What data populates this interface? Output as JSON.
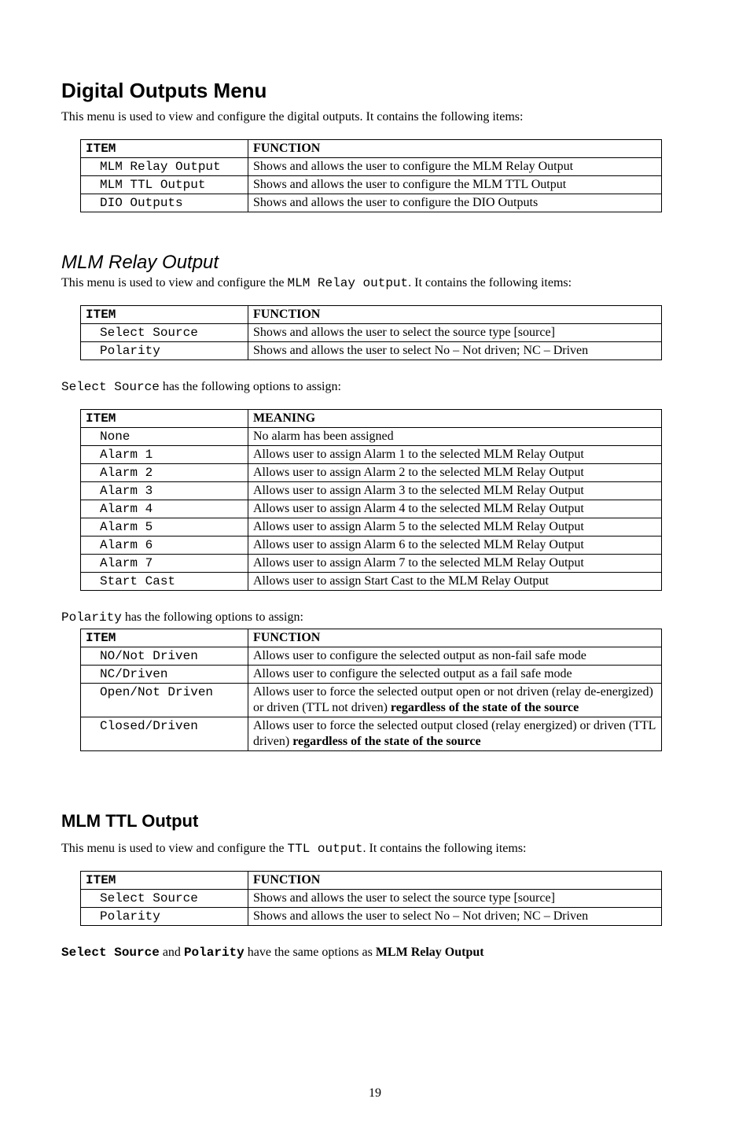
{
  "h1": "Digital Outputs Menu",
  "intro1": "This menu is used to view and configure the digital outputs.  It contains the following items:",
  "table1": {
    "headers": [
      "ITEM",
      "FUNCTION"
    ],
    "rows": [
      [
        "MLM Relay Output",
        "Shows and allows the user to configure the MLM Relay Output"
      ],
      [
        "MLM TTL Output",
        "Shows and allows the user to configure the MLM TTL Output"
      ],
      [
        "DIO Outputs",
        "Shows and allows the user to configure the DIO Outputs"
      ]
    ]
  },
  "h2a": "MLM Relay Output",
  "intro2_pre": "This menu is used to view and configure the ",
  "intro2_code": "MLM Relay output",
  "intro2_post": ".  It contains the following items:",
  "table2": {
    "headers": [
      "ITEM",
      "FUNCTION"
    ],
    "rows": [
      [
        "Select Source",
        "Shows and allows the user to select the source type [source]"
      ],
      [
        "Polarity",
        "Shows and allows the user to select No – Not driven; NC – Driven"
      ]
    ]
  },
  "para3_code": "Select Source",
  "para3_text": " has the following options to assign:",
  "table3": {
    "headers": [
      "ITEM",
      "MEANING"
    ],
    "rows": [
      [
        "None",
        "No alarm has been assigned"
      ],
      [
        "Alarm 1",
        "Allows user to assign Alarm 1 to the selected MLM Relay Output"
      ],
      [
        "Alarm 2",
        "Allows user to assign Alarm 2 to the selected MLM Relay Output"
      ],
      [
        "Alarm 3",
        "Allows user to assign Alarm 3 to the selected MLM Relay Output"
      ],
      [
        "Alarm 4",
        "Allows user to assign Alarm 4 to the selected MLM Relay Output"
      ],
      [
        "Alarm 5",
        "Allows user to assign Alarm 5 to the selected MLM Relay Output"
      ],
      [
        "Alarm 6",
        "Allows user to assign Alarm 6 to the selected MLM Relay Output"
      ],
      [
        "Alarm 7",
        "Allows user to assign Alarm 7 to the selected MLM Relay Output"
      ],
      [
        "Start Cast",
        "Allows user to assign Start Cast to the MLM Relay Output"
      ]
    ]
  },
  "para4_code": "Polarity",
  "para4_text": " has the following options to assign:",
  "table4": {
    "headers": [
      "ITEM",
      "FUNCTION"
    ],
    "rows": [
      {
        "item": "NO/Not Driven",
        "func": "Allows user to configure the selected output as non-fail safe mode"
      },
      {
        "item": "NC/Driven",
        "func": "Allows user to configure the selected output as a fail safe mode"
      },
      {
        "item": "Open/Not Driven",
        "func_pre": "Allows user to force the selected output open or not driven (relay de-energized) or driven (TTL not driven) ",
        "func_bold": "regardless of the state of the source"
      },
      {
        "item": "Closed/Driven",
        "func_pre": "Allows user to force the selected output closed (relay energized) or driven (TTL driven) ",
        "func_bold": "regardless of the state of the source"
      }
    ]
  },
  "h2b": "MLM TTL Output",
  "intro5_pre": "This menu is used to view and configure the ",
  "intro5_code": "TTL output",
  "intro5_post": ".  It contains the following items:",
  "table5": {
    "headers": [
      "ITEM",
      "FUNCTION"
    ],
    "rows": [
      [
        "Select Source",
        "Shows and allows the user to select the source type [source]"
      ],
      [
        "Polarity",
        "Shows and allows the user to select No – Not driven; NC – Driven"
      ]
    ]
  },
  "closing_code1": "Select Source",
  "closing_mid": " and ",
  "closing_code2": "Polarity",
  "closing_post1": " have the same options as ",
  "closing_bold": "MLM Relay Output",
  "page_number": "19"
}
